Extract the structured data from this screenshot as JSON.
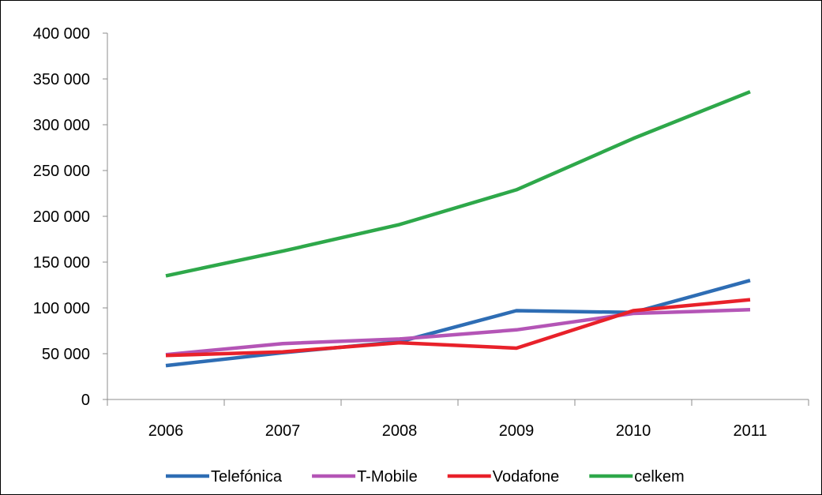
{
  "chart_data": {
    "type": "line",
    "title": "",
    "xlabel": "",
    "ylabel": "",
    "categories": [
      "2006",
      "2007",
      "2008",
      "2009",
      "2010",
      "2011"
    ],
    "ylim": [
      0,
      400000
    ],
    "y_ticks": [
      0,
      50000,
      100000,
      150000,
      200000,
      250000,
      300000,
      350000,
      400000
    ],
    "y_tick_labels": [
      "0",
      "50 000",
      "100 000",
      "150 000",
      "200 000",
      "250 000",
      "300 000",
      "350 000",
      "400 000"
    ],
    "grid": false,
    "legend_position": "bottom",
    "series": [
      {
        "name": "Telefónica",
        "color": "#2E6DB4",
        "values": [
          37000,
          51000,
          63000,
          97000,
          95000,
          130000
        ]
      },
      {
        "name": "T-Mobile",
        "color": "#B455B6",
        "values": [
          49000,
          61000,
          66000,
          76000,
          94000,
          98000
        ]
      },
      {
        "name": "Vodafone",
        "color": "#E8212A",
        "values": [
          48000,
          52000,
          62000,
          56000,
          97000,
          109000
        ]
      },
      {
        "name": "celkem",
        "color": "#2EA84A",
        "values": [
          135000,
          162000,
          191000,
          229000,
          285000,
          336000
        ]
      }
    ]
  }
}
